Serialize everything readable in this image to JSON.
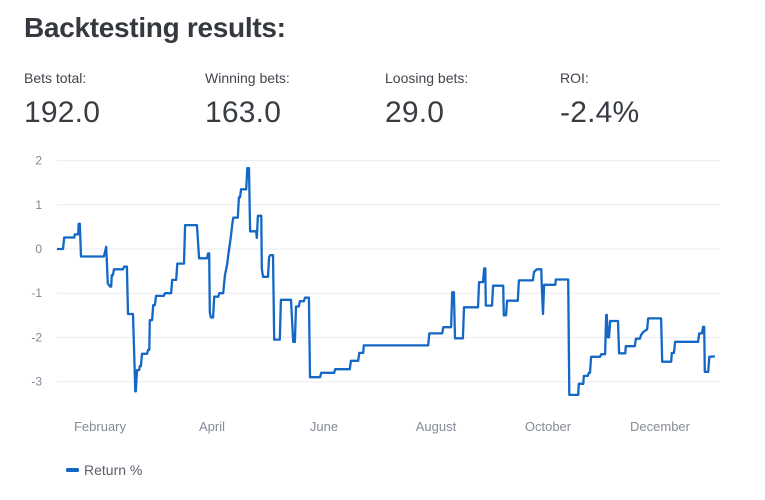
{
  "header": {
    "title": "Backtesting results:"
  },
  "stats": [
    {
      "label": "Bets total:",
      "value": "192.0"
    },
    {
      "label": "Winning bets:",
      "value": "163.0"
    },
    {
      "label": "Loosing bets:",
      "value": "29.0"
    },
    {
      "label": "ROI:",
      "value": "-2.4%"
    }
  ],
  "legend": {
    "label": "Return %"
  },
  "colors": {
    "line": "#1467c4",
    "grid": "#e9ebf1",
    "axis_text": "#858b99",
    "title_text": "#35393f"
  },
  "chart_data": {
    "type": "line",
    "title": "",
    "xlabel": "",
    "ylabel": "",
    "x_unit": "months since Jan 1 (0 = January 1)",
    "ylim": [
      -3.45,
      2.15
    ],
    "xlim": [
      0.23,
      12.07
    ],
    "grid": "horizontal",
    "legend_position": "bottom-left",
    "y_ticks": [
      2,
      1,
      0,
      -1,
      -2,
      -3
    ],
    "x_ticks": [
      {
        "m": 1,
        "label": "February"
      },
      {
        "m": 3,
        "label": "April"
      },
      {
        "m": 5,
        "label": "June"
      },
      {
        "m": 7,
        "label": "August"
      },
      {
        "m": 9,
        "label": "October"
      },
      {
        "m": 11,
        "label": "December"
      }
    ],
    "series": [
      {
        "name": "Return %",
        "points": [
          [
            0.23,
            0.0
          ],
          [
            0.34,
            0.0
          ],
          [
            0.36,
            0.26
          ],
          [
            0.54,
            0.26
          ],
          [
            0.55,
            0.33
          ],
          [
            0.61,
            0.33
          ],
          [
            0.62,
            0.57
          ],
          [
            0.64,
            0.57
          ],
          [
            0.66,
            -0.17
          ],
          [
            1.07,
            -0.17
          ],
          [
            1.11,
            0.05
          ],
          [
            1.14,
            -0.78
          ],
          [
            1.18,
            -0.85
          ],
          [
            1.2,
            -0.85
          ],
          [
            1.21,
            -0.59
          ],
          [
            1.23,
            -0.59
          ],
          [
            1.25,
            -0.46
          ],
          [
            1.41,
            -0.46
          ],
          [
            1.43,
            -0.4
          ],
          [
            1.48,
            -0.4
          ],
          [
            1.5,
            -1.47
          ],
          [
            1.59,
            -1.47
          ],
          [
            1.63,
            -3.22
          ],
          [
            1.64,
            -3.22
          ],
          [
            1.66,
            -2.74
          ],
          [
            1.7,
            -2.74
          ],
          [
            1.71,
            -2.65
          ],
          [
            1.73,
            -2.65
          ],
          [
            1.75,
            -2.37
          ],
          [
            1.84,
            -2.37
          ],
          [
            1.86,
            -2.28
          ],
          [
            1.88,
            -2.28
          ],
          [
            1.89,
            -1.61
          ],
          [
            1.93,
            -1.61
          ],
          [
            1.95,
            -1.27
          ],
          [
            1.98,
            -1.27
          ],
          [
            2.0,
            -1.06
          ],
          [
            2.14,
            -1.06
          ],
          [
            2.16,
            -1.0
          ],
          [
            2.27,
            -1.0
          ],
          [
            2.29,
            -0.7
          ],
          [
            2.36,
            -0.7
          ],
          [
            2.38,
            -0.33
          ],
          [
            2.5,
            -0.33
          ],
          [
            2.52,
            0.54
          ],
          [
            2.73,
            0.54
          ],
          [
            2.77,
            -0.21
          ],
          [
            2.91,
            -0.21
          ],
          [
            2.93,
            -0.1
          ],
          [
            2.95,
            -0.1
          ],
          [
            2.96,
            -1.43
          ],
          [
            2.98,
            -1.55
          ],
          [
            3.02,
            -1.55
          ],
          [
            3.04,
            -1.08
          ],
          [
            3.11,
            -1.08
          ],
          [
            3.13,
            -1.0
          ],
          [
            3.2,
            -1.0
          ],
          [
            3.23,
            -0.6
          ],
          [
            3.27,
            -0.35
          ],
          [
            3.3,
            -0.05
          ],
          [
            3.34,
            0.3
          ],
          [
            3.36,
            0.55
          ],
          [
            3.38,
            0.71
          ],
          [
            3.46,
            0.71
          ],
          [
            3.48,
            1.17
          ],
          [
            3.5,
            1.17
          ],
          [
            3.52,
            1.35
          ],
          [
            3.61,
            1.35
          ],
          [
            3.63,
            1.83
          ],
          [
            3.66,
            1.83
          ],
          [
            3.68,
            0.4
          ],
          [
            3.79,
            0.4
          ],
          [
            3.8,
            0.25
          ],
          [
            3.82,
            0.75
          ],
          [
            3.88,
            0.75
          ],
          [
            3.89,
            -0.44
          ],
          [
            3.91,
            -0.63
          ],
          [
            4.0,
            -0.63
          ],
          [
            4.02,
            -0.18
          ],
          [
            4.04,
            -0.14
          ],
          [
            4.09,
            -0.14
          ],
          [
            4.11,
            -2.05
          ],
          [
            4.21,
            -2.05
          ],
          [
            4.23,
            -1.15
          ],
          [
            4.41,
            -1.15
          ],
          [
            4.45,
            -2.1
          ],
          [
            4.48,
            -2.1
          ],
          [
            4.5,
            -1.3
          ],
          [
            4.55,
            -1.3
          ],
          [
            4.57,
            -1.18
          ],
          [
            4.64,
            -1.18
          ],
          [
            4.66,
            -1.1
          ],
          [
            4.73,
            -1.1
          ],
          [
            4.75,
            -2.9
          ],
          [
            4.93,
            -2.9
          ],
          [
            4.95,
            -2.8
          ],
          [
            5.18,
            -2.8
          ],
          [
            5.2,
            -2.72
          ],
          [
            5.46,
            -2.72
          ],
          [
            5.48,
            -2.53
          ],
          [
            5.61,
            -2.53
          ],
          [
            5.63,
            -2.35
          ],
          [
            5.7,
            -2.35
          ],
          [
            5.71,
            -2.18
          ],
          [
            6.86,
            -2.18
          ],
          [
            6.88,
            -1.91
          ],
          [
            7.11,
            -1.91
          ],
          [
            7.13,
            -1.77
          ],
          [
            7.27,
            -1.77
          ],
          [
            7.29,
            -0.98
          ],
          [
            7.32,
            -0.98
          ],
          [
            7.34,
            -2.02
          ],
          [
            7.48,
            -2.02
          ],
          [
            7.5,
            -1.32
          ],
          [
            7.75,
            -1.32
          ],
          [
            7.77,
            -0.75
          ],
          [
            7.84,
            -0.75
          ],
          [
            7.86,
            -0.44
          ],
          [
            7.88,
            -0.44
          ],
          [
            7.89,
            -1.28
          ],
          [
            8.0,
            -1.28
          ],
          [
            8.02,
            -0.83
          ],
          [
            8.2,
            -0.83
          ],
          [
            8.21,
            -1.5
          ],
          [
            8.25,
            -1.5
          ],
          [
            8.27,
            -1.17
          ],
          [
            8.46,
            -1.17
          ],
          [
            8.48,
            -0.71
          ],
          [
            8.73,
            -0.71
          ],
          [
            8.75,
            -0.52
          ],
          [
            8.8,
            -0.46
          ],
          [
            8.88,
            -0.46
          ],
          [
            8.89,
            -0.85
          ],
          [
            8.91,
            -1.47
          ],
          [
            8.93,
            -0.81
          ],
          [
            9.13,
            -0.81
          ],
          [
            9.14,
            -0.69
          ],
          [
            9.36,
            -0.69
          ],
          [
            9.38,
            -3.3
          ],
          [
            9.54,
            -3.3
          ],
          [
            9.55,
            -3.05
          ],
          [
            9.63,
            -3.05
          ],
          [
            9.64,
            -2.87
          ],
          [
            9.71,
            -2.87
          ],
          [
            9.73,
            -2.8
          ],
          [
            9.75,
            -2.8
          ],
          [
            9.77,
            -2.44
          ],
          [
            9.93,
            -2.44
          ],
          [
            9.95,
            -2.38
          ],
          [
            10.02,
            -2.38
          ],
          [
            10.04,
            -1.49
          ],
          [
            10.05,
            -1.49
          ],
          [
            10.07,
            -2.0
          ],
          [
            10.09,
            -2.0
          ],
          [
            10.11,
            -1.63
          ],
          [
            10.25,
            -1.63
          ],
          [
            10.27,
            -2.36
          ],
          [
            10.38,
            -2.36
          ],
          [
            10.39,
            -2.2
          ],
          [
            10.55,
            -2.2
          ],
          [
            10.57,
            -2.03
          ],
          [
            10.64,
            -2.03
          ],
          [
            10.66,
            -1.95
          ],
          [
            10.7,
            -1.88
          ],
          [
            10.77,
            -1.82
          ],
          [
            10.79,
            -1.57
          ],
          [
            11.02,
            -1.57
          ],
          [
            11.04,
            -2.55
          ],
          [
            11.2,
            -2.55
          ],
          [
            11.21,
            -2.35
          ],
          [
            11.25,
            -2.35
          ],
          [
            11.27,
            -2.1
          ],
          [
            11.68,
            -2.1
          ],
          [
            11.7,
            -1.91
          ],
          [
            11.75,
            -1.91
          ],
          [
            11.77,
            -1.76
          ],
          [
            11.79,
            -1.76
          ],
          [
            11.8,
            -2.78
          ],
          [
            11.86,
            -2.78
          ],
          [
            11.88,
            -2.44
          ],
          [
            11.98,
            -2.43
          ]
        ]
      }
    ]
  }
}
